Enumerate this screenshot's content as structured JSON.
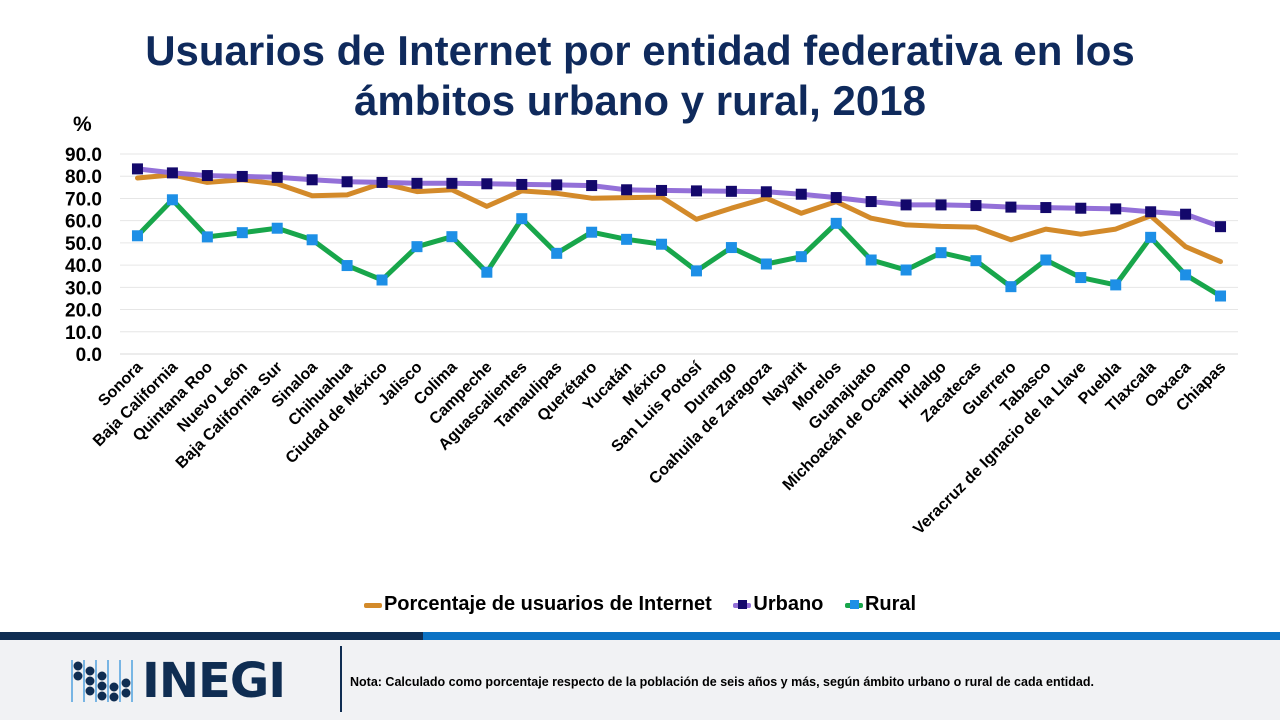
{
  "title_line1": "Usuarios de Internet por entidad federativa en los",
  "title_line2": "ámbitos urbano y rural, 2018",
  "footer": {
    "logo_text": "INEGI",
    "note": "Nota: Calculado como porcentaje respecto de la población de seis años y más, según ámbito urbano o rural de cada entidad."
  },
  "colors": {
    "title": "#0f2a5c",
    "total_line": "#d38a2a",
    "urbano_line": "#9370d8",
    "urbano_marker": "#13086b",
    "rural_line": "#18a64b",
    "rural_marker": "#1d8fe6",
    "band_dark": "#0f2d52",
    "band_light": "#0b72c4"
  },
  "chart_data": {
    "type": "line",
    "title": "Usuarios de Internet por entidad federativa en los ámbitos urbano y rural, 2018",
    "xlabel": "",
    "ylabel": "%",
    "ylim": [
      0,
      90
    ],
    "yticks": [
      "0.0",
      "10.0",
      "20.0",
      "30.0",
      "40.0",
      "50.0",
      "60.0",
      "70.0",
      "80.0",
      "90.0"
    ],
    "grid": true,
    "legend_position": "bottom",
    "categories": [
      "Sonora",
      "Baja California",
      "Quintana Roo",
      "Nuevo León",
      "Baja California Sur",
      "Sinaloa",
      "Chihuahua",
      "Ciudad de México",
      "Jalisco",
      "Colima",
      "Campeche",
      "Aguascalientes",
      "Tamaulipas",
      "Querétaro",
      "Yucatán",
      "México",
      "San Luis Potosí",
      "Durango",
      "Coahuila de Zaragoza",
      "Nayarit",
      "Morelos",
      "Guanajuato",
      "Michoacán de Ocampo",
      "Hidalgo",
      "Zacatecas",
      "Guerrero",
      "Tabasco",
      "Veracruz de Ignacio de la Llave",
      "Puebla",
      "Tlaxcala",
      "Oaxaca",
      "Chiapas"
    ],
    "series": [
      {
        "name": "Porcentaje de usuarios de Internet",
        "key": "total",
        "marker": false,
        "values": [
          79.2,
          80.6,
          77.2,
          78.4,
          76.6,
          71.2,
          71.6,
          76.8,
          73.1,
          73.9,
          66.4,
          73.4,
          72.3,
          70.1,
          70.4,
          70.6,
          60.6,
          65.6,
          70.1,
          63.3,
          68.6,
          61.1,
          58.1,
          57.4,
          57.1,
          51.4,
          56.2,
          53.9,
          56.2,
          62.2,
          48.3,
          41.6
        ]
      },
      {
        "name": "Urbano",
        "key": "urbano",
        "marker": true,
        "values": [
          83.3,
          81.5,
          80.3,
          79.9,
          79.5,
          78.4,
          77.5,
          77.2,
          76.8,
          76.8,
          76.6,
          76.3,
          76.1,
          75.8,
          73.9,
          73.6,
          73.4,
          73.2,
          73.0,
          71.9,
          70.4,
          68.6,
          67.1,
          67.1,
          66.8,
          66.1,
          65.9,
          65.6,
          65.3,
          64.0,
          62.9,
          57.3
        ]
      },
      {
        "name": "Rural",
        "key": "rural",
        "marker": true,
        "values": [
          53.2,
          69.4,
          52.7,
          54.6,
          56.6,
          51.4,
          39.8,
          33.3,
          48.3,
          52.8,
          36.8,
          60.9,
          45.3,
          54.8,
          51.6,
          49.4,
          37.4,
          47.9,
          40.5,
          43.8,
          58.8,
          42.3,
          37.8,
          45.6,
          42.0,
          30.3,
          42.3,
          34.4,
          31.1,
          52.5,
          35.6,
          26.1
        ]
      }
    ]
  }
}
